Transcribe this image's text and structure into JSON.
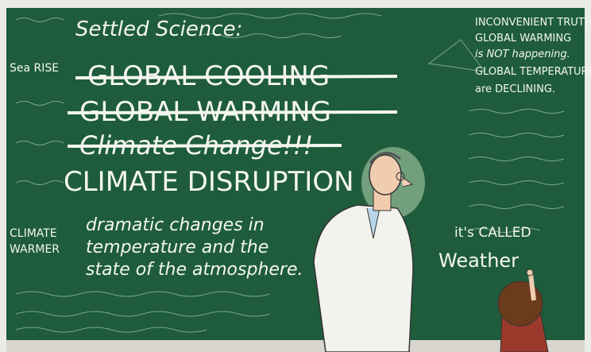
{
  "board": {
    "heading": "Settled Science:",
    "crossed_out": [
      "GLOBAL COOLING",
      "GLOBAL WARMING",
      "Climate Change!!!"
    ],
    "current_term": "CLIMATE DISRUPTION",
    "definition": [
      "dramatic changes in",
      "temperature and the",
      "state of the atmosphere."
    ],
    "sidebar": [
      "INCONVENIENT TRUTH",
      "GLOBAL WARMING",
      "is NOT happening.",
      "GLOBAL TEMPERATURE",
      "are DECLINING."
    ],
    "margin": [
      "Sea RISE",
      "CLIMATE",
      "WARMER"
    ],
    "kid_note": [
      "it's CALLED",
      "Weather"
    ]
  }
}
